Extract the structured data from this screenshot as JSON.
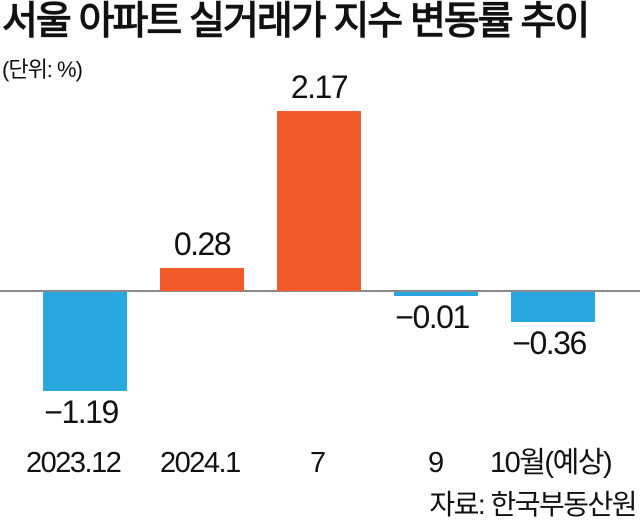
{
  "header": {
    "title": "서울 아파트 실거래가 지수 변동률 추이",
    "unit": "(단위: %)"
  },
  "source": "자료: 한국부동산원",
  "colors": {
    "positive": "#f15a2b",
    "negative": "#29a8df",
    "baseline": "#8a8a8a"
  },
  "bars": [
    {
      "category": "2023.12",
      "value_label": "−1.19"
    },
    {
      "category": "2024.1",
      "value_label": "0.28"
    },
    {
      "category": "7",
      "value_label": "2.17"
    },
    {
      "category": "9",
      "value_label": "−0.01"
    },
    {
      "category": "10월(예상)",
      "value_label": "−0.36"
    }
  ],
  "chart_data": {
    "type": "bar",
    "title": "서울 아파트 실거래가 지수 변동률 추이",
    "subtitle": "(단위: %)",
    "categories": [
      "2023.12",
      "2024.1",
      "7",
      "9",
      "10월(예상)"
    ],
    "values": [
      -1.19,
      0.28,
      2.17,
      -0.01,
      -0.36
    ],
    "xlabel": "",
    "ylabel": "%",
    "ylim": [
      -1.19,
      2.17
    ],
    "grid": false,
    "legend": "none",
    "annotations": [
      "자료: 한국부동산원"
    ],
    "colors_by_sign": {
      "positive": "#f15a2b",
      "negative": "#29a8df"
    }
  }
}
